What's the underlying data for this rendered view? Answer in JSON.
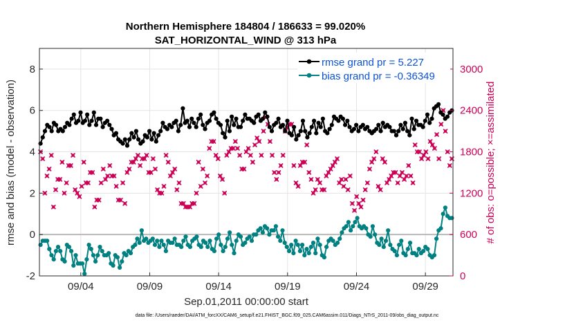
{
  "chart_data": {
    "type": "line",
    "title": "Northern Hemisphere 184804 / 186633 = 99.020%",
    "subtitle": "SAT_HORIZONTAL_WIND @ 313 hPa",
    "xlabel": "Sep.01,2011 00:00:00 start",
    "ylabel": "rmse and bias (model - observation)",
    "y2label": "# of obs: o=possible; ×=assimilated",
    "ylim": [
      -2,
      9
    ],
    "y2lim": [
      0,
      3300
    ],
    "xlim": [
      0,
      30
    ],
    "grid": true,
    "legend_position": "top-right",
    "x_ticks": [
      {
        "x": 3,
        "label": "09/04"
      },
      {
        "x": 8,
        "label": "09/09"
      },
      {
        "x": 13,
        "label": "09/14"
      },
      {
        "x": 18,
        "label": "09/19"
      },
      {
        "x": 23,
        "label": "09/24"
      },
      {
        "x": 28,
        "label": "09/29"
      }
    ],
    "y_ticks": [
      "-2",
      "0",
      "2",
      "4",
      "6",
      "8"
    ],
    "y2_ticks": [
      "0",
      "600",
      "1200",
      "1800",
      "2400",
      "3000"
    ],
    "colors": {
      "rmse": "#000000",
      "bias": "#008080",
      "obs": "#cc0055",
      "zero": "#b8b8b8",
      "legend_text": "#0b52d6"
    },
    "series": [
      {
        "name": "rmse grand pr = 5.227",
        "values": [
          4.4,
          4.7,
          5.0,
          5.3,
          5.2,
          5.0,
          5.4,
          5.3,
          5.0,
          5.1,
          5.0,
          5.2,
          5.4,
          5.3,
          5.6,
          5.8,
          5.4,
          5.5,
          5.9,
          5.4,
          5.5,
          5.8,
          5.3,
          5.5,
          5.9,
          5.3,
          5.6,
          5.6,
          5.2,
          5.4,
          5.5,
          5.3,
          5.1,
          4.8,
          4.9,
          4.6,
          4.5,
          4.4,
          4.6,
          4.3,
          4.6,
          4.9,
          4.7,
          5.0,
          4.6,
          4.4,
          4.5,
          4.8,
          4.7,
          5.0,
          4.6,
          4.9,
          4.5,
          4.8,
          5.0,
          5.4,
          5.2,
          5.1,
          5.3,
          5.2,
          5.4,
          5.5,
          5.0,
          5.3,
          6.1,
          5.4,
          5.5,
          5.2,
          5.6,
          5.4,
          5.2,
          5.6,
          5.8,
          5.3,
          5.1,
          5.4,
          5.5,
          5.8,
          5.9,
          5.6,
          5.4,
          5.3,
          4.9,
          4.7,
          5.5,
          5.0,
          5.7,
          5.3,
          5.6,
          5.2,
          5.2,
          5.5,
          5.8,
          5.6,
          5.6,
          5.5,
          5.4,
          5.7,
          5.8,
          5.5,
          5.6,
          5.9,
          5.7,
          5.2,
          5.0,
          5.3,
          5.4,
          5.6,
          5.2,
          5.3,
          5.0,
          5.5,
          4.9,
          4.8,
          5.2,
          4.6,
          4.8,
          5.0,
          5.5,
          5.0,
          4.7,
          4.9,
          5.2,
          5.5,
          4.9,
          5.4,
          5.2,
          5.6,
          5.0,
          4.9,
          5.1,
          5.3,
          5.7,
          5.6,
          5.5,
          5.7,
          5.6,
          5.3,
          5.5,
          5.2,
          5.0,
          5.1,
          5.3,
          5.0,
          5.2,
          5.3,
          5.1,
          5.2,
          5.0,
          4.9,
          5.0,
          5.1,
          5.3,
          5.0,
          5.4,
          5.2,
          5.3,
          5.2,
          5.0,
          5.0,
          4.8,
          5.0,
          5.3,
          5.1,
          5.4,
          5.0,
          4.8,
          5.6,
          5.1,
          5.5,
          5.3,
          5.3,
          5.2,
          5.5,
          5.8,
          5.4,
          5.6,
          6.1,
          6.2,
          6.3,
          5.9,
          5.8,
          5.6,
          5.7,
          5.9,
          6.0
        ]
      },
      {
        "name": "bias grand pr = -0.36349",
        "values": [
          -0.5,
          -0.3,
          -0.3,
          -0.3,
          -0.7,
          -1.0,
          -1.2,
          -0.8,
          -0.6,
          -0.8,
          -1.2,
          -1.3,
          -0.5,
          -0.6,
          -0.8,
          -1.5,
          -1.0,
          -1.4,
          -1.4,
          -1.4,
          -1.9,
          -1.2,
          -0.5,
          -0.7,
          -1.0,
          -1.3,
          -1.0,
          -0.6,
          -0.8,
          -1.0,
          -1.0,
          -0.9,
          -1.4,
          -1.5,
          -1.0,
          -1.1,
          -1.6,
          -1.3,
          -0.9,
          -1.0,
          -0.8,
          -0.9,
          -0.6,
          -0.5,
          -0.2,
          -0.4,
          0.2,
          -0.3,
          -0.2,
          -0.4,
          -0.3,
          -0.2,
          -0.5,
          -0.3,
          -0.6,
          -0.3,
          -0.5,
          -0.8,
          -0.3,
          -0.4,
          -0.4,
          -0.2,
          -0.5,
          -0.5,
          -0.6,
          -0.3,
          -0.1,
          -0.5,
          -0.6,
          -0.3,
          -0.2,
          -0.1,
          -0.5,
          -0.6,
          -0.3,
          -0.4,
          -0.6,
          -0.3,
          -0.7,
          -0.8,
          -0.2,
          0.0,
          -0.5,
          -0.8,
          -0.6,
          -0.2,
          0.1,
          -0.5,
          -0.9,
          -0.3,
          0.0,
          -0.1,
          -0.5,
          -0.4,
          -0.2,
          -0.1,
          -0.3,
          0.0,
          0.0,
          0.2,
          0.3,
          0.1,
          0.4,
          0.3,
          0.0,
          0.2,
          0.2,
          0.4,
          -0.1,
          -0.3,
          0.2,
          -0.4,
          -0.6,
          -0.8,
          -0.5,
          -0.9,
          -0.3,
          -0.5,
          -0.8,
          -0.5,
          -1.0,
          -0.7,
          -0.9,
          -0.6,
          -0.4,
          -0.9,
          -0.2,
          -0.5,
          -1.0,
          -1.1,
          -0.6,
          -0.3,
          -0.2,
          -0.3,
          -0.5,
          -0.4,
          -0.2,
          0.1,
          0.3,
          0.4,
          0.6,
          0.2,
          0.4,
          0.6,
          0.8,
          0.4,
          0.3,
          0.4,
          0.3,
          0.0,
          -0.1,
          0.4,
          0.0,
          -0.4,
          -0.5,
          -0.2,
          -0.6,
          -0.3,
          0.2,
          -0.5,
          -0.7,
          -0.8,
          -1.0,
          -0.5,
          -0.3,
          -0.9,
          -1.0,
          -0.7,
          -0.4,
          -0.9,
          -0.9,
          -1.0,
          -0.7,
          -0.9,
          -0.8,
          -0.6,
          -0.7,
          -1.0,
          -1.1,
          -1.0,
          -0.2,
          0.2,
          0.3,
          1.0,
          1.3,
          0.9,
          0.8,
          0.8
        ]
      },
      {
        "name": "# of obs",
        "values": [
          1800,
          1700,
          1200,
          1450,
          1550,
          1750,
          1000,
          1250,
          1400,
          1400,
          1650,
          1200,
          1350,
          1600,
          1600,
          1750,
          1250,
          1200,
          1150,
          1300,
          1650,
          1350,
          1350,
          1500,
          1500,
          1000,
          1100,
          1100,
          1350,
          1550,
          1400,
          1450,
          1600,
          1450,
          1450,
          1300,
          1100,
          1100,
          1350,
          1050,
          1500,
          1550,
          1650,
          1650,
          1700,
          1750,
          1600,
          1700,
          1700,
          1750,
          1500,
          1500,
          1700,
          1550,
          1250,
          1200,
          1200,
          1300,
          1750,
          1650,
          1450,
          1500,
          1550,
          1250,
          1350,
          1050,
          1050,
          1000,
          1000,
          1000,
          1050,
          1050,
          1200,
          1650,
          1300,
          1550,
          1350,
          1450,
          1850,
          1950,
          1950,
          1750,
          1700,
          1450,
          1400,
          1200,
          1750,
          1800,
          1850,
          1850,
          1950,
          1850,
          1750,
          1550,
          1550,
          1800,
          1850,
          1750,
          1650,
          1900,
          2000,
          1950,
          1750,
          2100,
          2300,
          2200,
          1950,
          1750,
          1500,
          1400,
          1500,
          1600,
          1750,
          2100,
          2150,
          2200,
          2200,
          1600,
          1350,
          1300,
          1600,
          1650,
          1650,
          1900,
          1500,
          1400,
          1200,
          1250,
          1400,
          1350,
          1250,
          1250,
          1450,
          1500,
          1550,
          1600,
          1650,
          1700,
          1350,
          1400,
          1300,
          1400,
          1250,
          1450,
          1050,
          950,
          1150,
          1050,
          1000,
          1100,
          1250,
          1350,
          1550,
          1650,
          1700,
          1800,
          1300,
          1250,
          1700,
          1650,
          1350,
          1400,
          1450,
          1500,
          1500,
          1350,
          1450,
          1500,
          1400,
          1450,
          1600,
          1450,
          1350,
          1900,
          1800,
          1800,
          1700,
          1750,
          1800,
          1700,
          1950,
          1900,
          1850,
          2050,
          1700,
          2200,
          2400,
          2100,
          1800,
          1600,
          1700
        ]
      }
    ]
  },
  "footer": {
    "datafile": "data file: /Users/raeder/DAI/ATM_forcXX/CAM6_setup/f.e21.FHIST_BGC.f09_025.CAM6assim.011/Diags_NTrS_2011-09/obs_diag_output.nc"
  }
}
